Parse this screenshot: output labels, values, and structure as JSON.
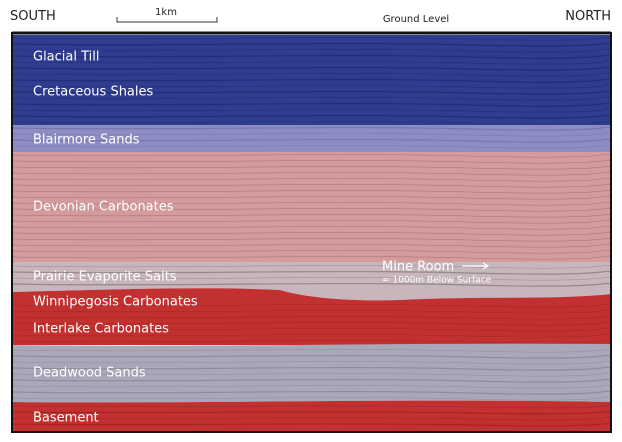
{
  "header": {
    "left": "SOUTH",
    "scale": "1km",
    "center": "Ground Level",
    "right": "NORTH"
  },
  "layers": [
    {
      "label": "Glacial Till"
    },
    {
      "label": "Cretaceous Shales"
    },
    {
      "label": "Blairmore Sands"
    },
    {
      "label": "Devonian Carbonates"
    },
    {
      "label": "Prairie Evaporite Salts"
    },
    {
      "label": "Winnipegosis Carbonates"
    },
    {
      "label": "Interlake Carbonates"
    },
    {
      "label": "Deadwood Sands"
    },
    {
      "label": "Basement"
    }
  ],
  "annotation": {
    "title": "Mine Room",
    "subtitle": "≈ 1000m Below Surface"
  }
}
